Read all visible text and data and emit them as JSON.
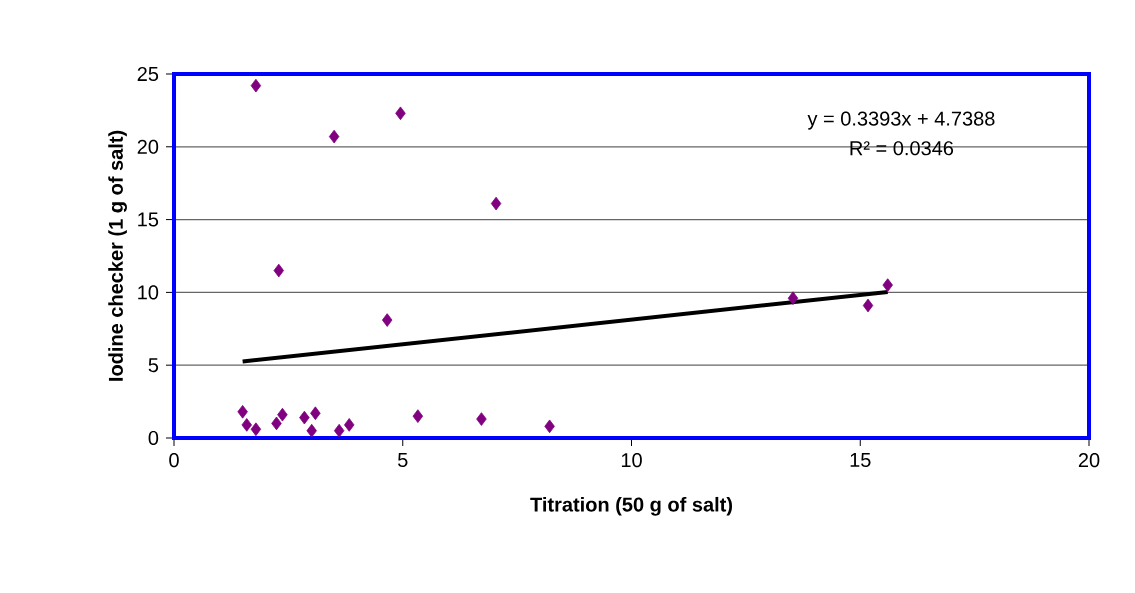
{
  "chart_data": {
    "type": "scatter",
    "xlabel": "Titration (50 g of salt)",
    "ylabel": "Iodine checker (1 g of salt)",
    "xlim": [
      0,
      20
    ],
    "xticks": [
      0,
      5,
      10,
      15,
      20
    ],
    "ylim": [
      0,
      25
    ],
    "yticks": [
      0,
      5,
      10,
      15,
      20,
      25
    ],
    "grid": "y",
    "marker": "diamond",
    "series": [
      {
        "color": "#800080",
        "x": [
          1.79,
          3.5,
          4.95,
          2.29,
          4.66,
          7.04,
          1.5,
          1.59,
          1.79,
          2.24,
          2.37,
          2.85,
          3.09,
          3.01,
          3.61,
          3.83,
          5.33,
          6.72,
          8.21,
          13.53,
          15.17,
          15.6
        ],
        "values": [
          24.2,
          20.7,
          22.3,
          11.5,
          8.1,
          16.1,
          1.8,
          0.9,
          0.6,
          1.0,
          1.6,
          1.4,
          1.7,
          0.5,
          0.5,
          0.9,
          1.5,
          1.3,
          0.8,
          9.6,
          9.1,
          10.5
        ]
      },
      {
        "type": "line",
        "color": "#000000",
        "marker": "none",
        "x": [
          1.5,
          15.6
        ],
        "values": [
          5.25,
          10.03
        ]
      }
    ],
    "annotations": [
      "y = 0.3393x + 4.7388",
      "R² = 0.0346"
    ]
  }
}
